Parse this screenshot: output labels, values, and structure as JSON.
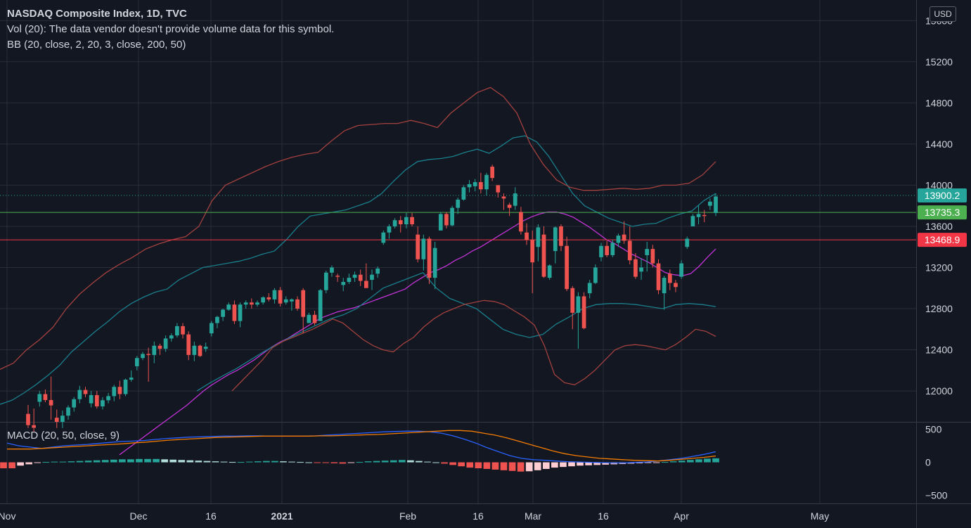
{
  "legend": {
    "title": "NASDAQ Composite Index, 1D, TVC",
    "volume_note": "Vol (20): The data vendor doesn't provide volume data for this symbol.",
    "bb_label": "BB (20, close, 2, 20, 3, close, 200, 50)"
  },
  "currency_button": "USD",
  "colors": {
    "background": "#131722",
    "grid": "#2a2e39",
    "up": "#26a69a",
    "down": "#ef5350",
    "bb_basis": "#c233d6",
    "bb_inner": "#1a7f8c",
    "bb_outer": "#a3413f",
    "macd_line": "#2962ff",
    "signal_line": "#f57c00",
    "hist_pos": "#26a69a",
    "hist_neg": "#ef5350",
    "hist_neg_light": "#ffcdd2",
    "hist_pos_light": "#b2dfdb",
    "last_price_bg": "#26a69a",
    "hline_green": "#4caf50",
    "hline_red": "#f23645"
  },
  "chart_data": [
    {
      "type": "candlestick",
      "title": "NASDAQ Composite Index, 1D, TVC",
      "x_ticks": [
        "Nov",
        "Dec",
        "16",
        "2021",
        "Feb",
        "16",
        "Mar",
        "16",
        "Apr",
        "May"
      ],
      "y_ticks": [
        "12000",
        "12400",
        "12800",
        "13200",
        "13600",
        "14000",
        "14400",
        "14800",
        "15200",
        "15600"
      ],
      "ylim": [
        11700,
        15800
      ],
      "price_labels": {
        "last": "13900.2",
        "green_line": "13735.3",
        "red_line": "13468.9"
      },
      "horizontal_lines": [
        13735.3,
        13468.9
      ],
      "dotted_last_line": 13900.2,
      "candles": [
        [
          11777,
          11864,
          11640,
          11668
        ],
        [
          11668,
          11830,
          11600,
          11642
        ],
        [
          11895,
          12000,
          11848,
          11970
        ],
        [
          11970,
          12015,
          11890,
          11912
        ],
        [
          11912,
          12140,
          11720,
          11860
        ],
        [
          11740,
          11820,
          11640,
          11700
        ],
        [
          11700,
          11810,
          11640,
          11760
        ],
        [
          11760,
          11860,
          11720,
          11840
        ],
        [
          11840,
          11940,
          11800,
          11920
        ],
        [
          11920,
          12050,
          11880,
          12010
        ],
        [
          12010,
          12040,
          11940,
          11970
        ],
        [
          11880,
          12000,
          11840,
          11960
        ],
        [
          11960,
          12000,
          11830,
          11850
        ],
        [
          11850,
          11940,
          11820,
          11910
        ],
        [
          11910,
          11980,
          11880,
          11950
        ],
        [
          11950,
          12060,
          11900,
          12040
        ],
        [
          12040,
          12100,
          11920,
          11970
        ],
        [
          11970,
          12120,
          11950,
          12110
        ],
        [
          12110,
          12200,
          12090,
          12130
        ],
        [
          12240,
          12340,
          12200,
          12320
        ],
        [
          12320,
          12380,
          12300,
          12360
        ],
        [
          12360,
          12420,
          12090,
          12350
        ],
        [
          12350,
          12480,
          12270,
          12440
        ],
        [
          12440,
          12460,
          12350,
          12410
        ],
        [
          12410,
          12540,
          12380,
          12510
        ],
        [
          12510,
          12560,
          12480,
          12540
        ],
        [
          12540,
          12660,
          12520,
          12630
        ],
        [
          12630,
          12660,
          12510,
          12550
        ],
        [
          12550,
          12580,
          12300,
          12350
        ],
        [
          12350,
          12480,
          12290,
          12440
        ],
        [
          12440,
          12450,
          12330,
          12340
        ],
        [
          12410,
          12470,
          12380,
          12430
        ],
        [
          12560,
          12680,
          12530,
          12660
        ],
        [
          12660,
          12730,
          12610,
          12720
        ],
        [
          12720,
          12800,
          12680,
          12790
        ],
        [
          12790,
          12860,
          12780,
          12840
        ],
        [
          12840,
          12880,
          12650,
          12680
        ],
        [
          12680,
          12860,
          12620,
          12840
        ],
        [
          12840,
          12880,
          12800,
          12860
        ],
        [
          12860,
          12900,
          12800,
          12840
        ],
        [
          12840,
          12880,
          12820,
          12860
        ],
        [
          12860,
          12920,
          12840,
          12910
        ],
        [
          12910,
          12950,
          12870,
          12890
        ],
        [
          12890,
          13000,
          12850,
          12980
        ],
        [
          12980,
          13010,
          12820,
          12850
        ],
        [
          12860,
          12920,
          12840,
          12890
        ],
        [
          12870,
          12900,
          12780,
          12890
        ],
        [
          12890,
          12920,
          12780,
          12800
        ],
        [
          12980,
          13000,
          12560,
          12720
        ],
        [
          12660,
          12760,
          12660,
          12740
        ],
        [
          12740,
          12780,
          12640,
          12660
        ],
        [
          12680,
          12990,
          12680,
          12980
        ],
        [
          12980,
          13170,
          12950,
          13150
        ],
        [
          13150,
          13220,
          13110,
          13200
        ],
        [
          13120,
          13140,
          13060,
          13110
        ],
        [
          13030,
          13100,
          12970,
          13060
        ],
        [
          13060,
          13140,
          13040,
          13100
        ],
        [
          13100,
          13160,
          13060,
          13130
        ],
        [
          13130,
          13180,
          13020,
          13070
        ],
        [
          13070,
          13240,
          13010,
          13000
        ],
        [
          13080,
          13180,
          12980,
          13130
        ],
        [
          13140,
          13210,
          13100,
          13190
        ],
        [
          13440,
          13560,
          13420,
          13540
        ],
        [
          13540,
          13620,
          13480,
          13600
        ],
        [
          13600,
          13680,
          13580,
          13660
        ],
        [
          13660,
          13700,
          13540,
          13620
        ],
        [
          13620,
          13730,
          13580,
          13690
        ],
        [
          13690,
          13730,
          13600,
          13620
        ],
        [
          13520,
          13600,
          13250,
          13280
        ],
        [
          13280,
          13520,
          13170,
          13480
        ],
        [
          13480,
          13500,
          13040,
          13100
        ],
        [
          13100,
          13450,
          12990,
          13390
        ],
        [
          13560,
          13740,
          13560,
          13720
        ],
        [
          13720,
          13740,
          13580,
          13610
        ],
        [
          13610,
          13800,
          13600,
          13780
        ],
        [
          13780,
          13880,
          13720,
          13860
        ],
        [
          13860,
          14000,
          13850,
          13980
        ],
        [
          13980,
          14050,
          13930,
          14010
        ],
        [
          13990,
          14060,
          13940,
          14030
        ],
        [
          14030,
          14120,
          13920,
          13960
        ],
        [
          13960,
          14120,
          13900,
          14100
        ],
        [
          14180,
          14200,
          14040,
          14070
        ],
        [
          14000,
          14000,
          13880,
          13930
        ],
        [
          13890,
          13920,
          13760,
          13870
        ],
        [
          13810,
          13830,
          13700,
          13780
        ],
        [
          13800,
          13980,
          13760,
          13920
        ],
        [
          13740,
          13790,
          13520,
          13550
        ],
        [
          13540,
          13630,
          13420,
          13470
        ],
        [
          13470,
          13560,
          12950,
          13250
        ],
        [
          13400,
          13620,
          13260,
          13590
        ],
        [
          13520,
          13600,
          13100,
          13110
        ],
        [
          13100,
          13230,
          13080,
          13220
        ],
        [
          13360,
          13600,
          13240,
          13590
        ],
        [
          13600,
          13620,
          13360,
          13410
        ],
        [
          13410,
          13500,
          12970,
          12990
        ],
        [
          13000,
          13020,
          12600,
          12760
        ],
        [
          12760,
          12960,
          12410,
          12920
        ],
        [
          12920,
          12960,
          12600,
          12610
        ],
        [
          12950,
          13080,
          12900,
          13050
        ],
        [
          13050,
          13230,
          13040,
          13200
        ],
        [
          13300,
          13440,
          13260,
          13410
        ],
        [
          13410,
          13460,
          13300,
          13320
        ],
        [
          13320,
          13470,
          13300,
          13440
        ],
        [
          13440,
          13530,
          13400,
          13510
        ],
        [
          13520,
          13650,
          13430,
          13460
        ],
        [
          13460,
          13600,
          13230,
          13270
        ],
        [
          13280,
          13340,
          13090,
          13110
        ],
        [
          13160,
          13290,
          13080,
          13200
        ],
        [
          13320,
          13450,
          13160,
          13380
        ],
        [
          13380,
          13420,
          13200,
          13240
        ],
        [
          13240,
          13280,
          12940,
          12980
        ],
        [
          12950,
          13120,
          12790,
          13100
        ],
        [
          13140,
          13180,
          12980,
          13050
        ],
        [
          13050,
          13080,
          12960,
          13010
        ],
        [
          13110,
          13270,
          13090,
          13240
        ],
        [
          13400,
          13500,
          13380,
          13480
        ],
        [
          13600,
          13720,
          13600,
          13700
        ],
        [
          13690,
          13800,
          13620,
          13720
        ],
        [
          13710,
          13760,
          13640,
          13700
        ],
        [
          13800,
          13870,
          13760,
          13840
        ],
        [
          13730,
          13920,
          13700,
          13890
        ]
      ],
      "bollinger": {
        "basis": [
          11380,
          11440,
          11500,
          11560,
          11620,
          11680,
          11740,
          11800,
          11860,
          11930,
          12000,
          12060,
          12110,
          12160,
          12200,
          12250,
          12300,
          12360,
          12420,
          12470,
          12510,
          12560,
          12610,
          12660,
          12710,
          12740,
          12770,
          12790,
          12810,
          12840,
          12870,
          12900,
          12930,
          12960,
          12990,
          13050,
          13100,
          13150,
          13180,
          13220,
          13270,
          13310,
          13360,
          13400,
          13450,
          13500,
          13550,
          13600,
          13650,
          13690,
          13720,
          13740,
          13740,
          13720,
          13690,
          13640,
          13590,
          13530,
          13470,
          13430,
          13380,
          13330,
          13290,
          13250,
          13200,
          13150,
          13130,
          13120,
          13140,
          13210,
          13300,
          13380
        ],
        "upper_inner": [
          11870,
          11910,
          11980,
          12060,
          12150,
          12250,
          12380,
          12480,
          12580,
          12670,
          12770,
          12850,
          12910,
          12960,
          12990,
          13080,
          13140,
          13200,
          13220,
          13240,
          13260,
          13290,
          13330,
          13360,
          13470,
          13600,
          13700,
          13720,
          13740,
          13760,
          13800,
          13840,
          13920,
          14040,
          14150,
          14230,
          14250,
          14260,
          14280,
          14320,
          14350,
          14310,
          14380,
          14460,
          14480,
          14420,
          14280,
          14100,
          13920,
          13800,
          13740,
          13680,
          13640,
          13600,
          13620,
          13630,
          13680,
          13720,
          13750,
          13850,
          13920
        ],
        "lower_inner": [
          12000,
          12080,
          12150,
          12220,
          12300,
          12380,
          12450,
          12520,
          12580,
          12640,
          12700,
          12740,
          12800,
          12900,
          13000,
          13050,
          13100,
          13150,
          13000,
          12900,
          12850,
          12800,
          12700,
          12600,
          12550,
          12520,
          12550,
          12650,
          12720,
          12800,
          12840,
          12850,
          12850,
          12840,
          12820,
          12800,
          12840,
          12850,
          12840,
          12820
        ],
        "upper_outer": [
          12210,
          12270,
          12400,
          12500,
          12620,
          12800,
          12940,
          13050,
          13150,
          13230,
          13300,
          13380,
          13430,
          13470,
          13500,
          13600,
          13850,
          14000,
          14060,
          14120,
          14180,
          14230,
          14270,
          14300,
          14320,
          14430,
          14530,
          14580,
          14590,
          14600,
          14600,
          14630,
          14600,
          14560,
          14700,
          14800,
          14900,
          14950,
          14860,
          14700,
          14400,
          14200,
          14050,
          13980,
          13950,
          13950,
          13960,
          13970,
          13960,
          13970,
          14000,
          14000,
          14020,
          14100,
          14230
        ],
        "lower_outer": [
          12000,
          12100,
          12200,
          12300,
          12420,
          12480,
          12520,
          12560,
          12600,
          12650,
          12700,
          12660,
          12580,
          12500,
          12440,
          12400,
          12380,
          12460,
          12520,
          12620,
          12700,
          12760,
          12800,
          12840,
          12860,
          12880,
          12870,
          12840,
          12780,
          12720,
          12640,
          12440,
          12160,
          12080,
          12060,
          12120,
          12200,
          12300,
          12400,
          12440,
          12450,
          12440,
          12420,
          12400,
          12450,
          12520,
          12600,
          12580,
          12530
        ]
      }
    },
    {
      "type": "macd",
      "title": "MACD (20, 50, close, 9)",
      "y_ticks": [
        "500",
        "0",
        "−500"
      ],
      "ylim": [
        -620,
        600
      ],
      "macd_line": [
        290,
        250,
        230,
        210,
        230,
        250,
        260,
        270,
        285,
        300,
        315,
        320,
        330,
        345,
        360,
        370,
        380,
        385,
        390,
        395,
        395,
        400,
        400,
        395,
        395,
        395,
        395,
        400,
        410,
        420,
        430,
        440,
        450,
        460,
        465,
        470,
        470,
        460,
        440,
        400,
        350,
        290,
        220,
        160,
        100,
        60,
        40,
        30,
        20,
        10,
        5,
        0,
        -5,
        -10,
        -8,
        -2,
        5,
        20,
        40,
        60,
        90,
        120,
        160
      ],
      "signal_line": [
        200,
        200,
        200,
        210,
        220,
        230,
        240,
        250,
        260,
        270,
        280,
        295,
        305,
        320,
        335,
        345,
        355,
        365,
        375,
        380,
        385,
        390,
        395,
        395,
        395,
        395,
        395,
        400,
        400,
        405,
        410,
        415,
        420,
        430,
        440,
        450,
        460,
        470,
        480,
        480,
        470,
        440,
        410,
        370,
        320,
        270,
        220,
        170,
        130,
        100,
        80,
        60,
        50,
        40,
        30,
        25,
        20,
        30,
        45,
        60,
        75,
        95
      ],
      "histogram": [
        -90,
        -90,
        -50,
        -30,
        -10,
        5,
        10,
        10,
        15,
        20,
        25,
        30,
        35,
        40,
        45,
        45,
        50,
        50,
        50,
        45,
        40,
        35,
        30,
        25,
        20,
        15,
        10,
        5,
        5,
        10,
        15,
        20,
        20,
        15,
        10,
        5,
        0,
        -5,
        -10,
        -15,
        -20,
        -10,
        5,
        15,
        20,
        25,
        30,
        35,
        30,
        20,
        10,
        0,
        -20,
        -40,
        -60,
        -80,
        -90,
        -100,
        -110,
        -120,
        -130,
        -140,
        -135,
        -120,
        -100,
        -80,
        -70,
        -60,
        -50,
        -45,
        -40,
        -35,
        -30,
        -25,
        -20,
        -15,
        -10,
        -5,
        5,
        15,
        25,
        35,
        45,
        55,
        60
      ]
    }
  ]
}
